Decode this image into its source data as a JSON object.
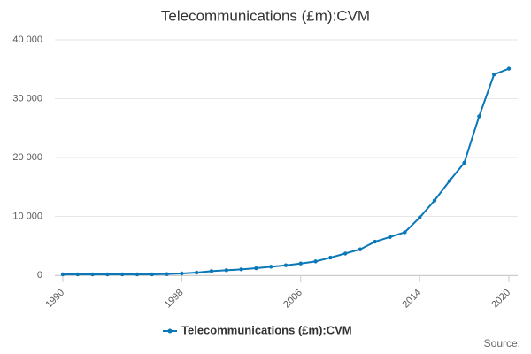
{
  "chart_data": {
    "type": "line",
    "title": "Telecommunications (£m):CVM",
    "x": [
      1990,
      1991,
      1992,
      1993,
      1994,
      1995,
      1996,
      1997,
      1998,
      1999,
      2000,
      2001,
      2002,
      2003,
      2004,
      2005,
      2006,
      2007,
      2008,
      2009,
      2010,
      2011,
      2012,
      2013,
      2014,
      2015,
      2016,
      2017,
      2018,
      2019,
      2020
    ],
    "series": [
      {
        "name": "Telecommunications (£m):CVM",
        "color": "#0a78b8",
        "values": [
          150,
          150,
          150,
          150,
          150,
          150,
          150,
          200,
          300,
          450,
          700,
          850,
          1000,
          1200,
          1450,
          1700,
          2000,
          2350,
          3000,
          3700,
          4400,
          5700,
          6500,
          7300,
          9800,
          12700,
          16000,
          19100,
          27000,
          34100,
          35100
        ]
      }
    ],
    "xlim": [
      1990,
      2020
    ],
    "xticks": [
      1990,
      1998,
      2006,
      2014,
      2020
    ],
    "ylim": [
      0,
      40000
    ],
    "yticks": [
      0,
      {
        "value": 10000,
        "label": "10 000"
      },
      {
        "value": 20000,
        "label": "20 000"
      },
      {
        "value": 30000,
        "label": "30 000"
      },
      {
        "value": 40000,
        "label": "40 000"
      }
    ],
    "grid": true,
    "legend": "bottom",
    "source": "Source:"
  }
}
